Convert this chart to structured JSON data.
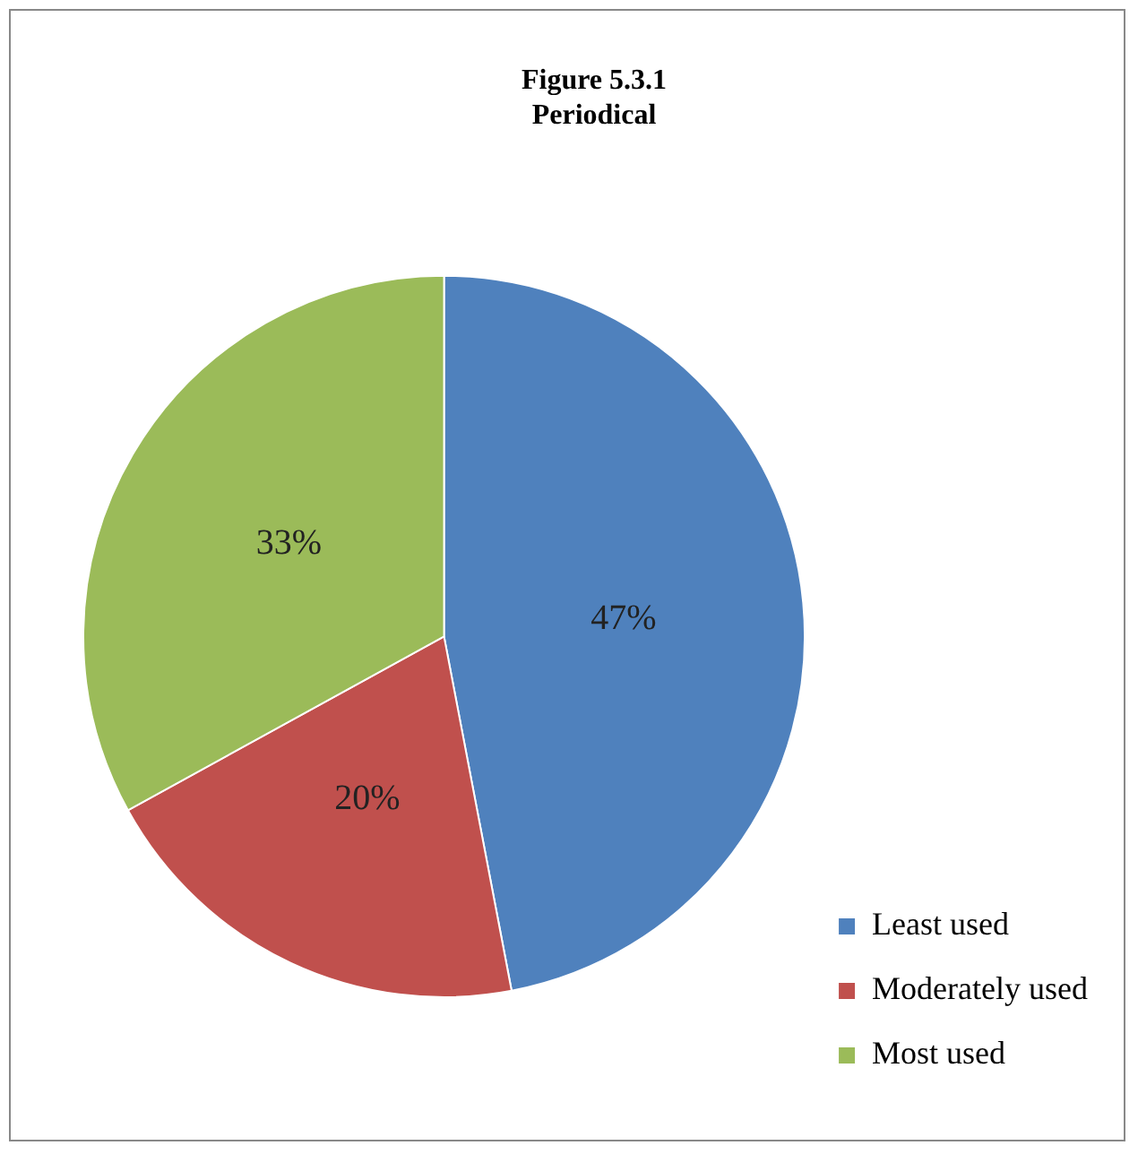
{
  "chart_data": {
    "type": "pie",
    "title": "Figure 5.3.1",
    "subtitle": "Periodical",
    "categories": [
      "Least used",
      "Moderately used",
      "Most used"
    ],
    "values": [
      47,
      20,
      33
    ],
    "colors": [
      "#4f81bd",
      "#c0504d",
      "#9bbb59"
    ],
    "value_labels": [
      "47%",
      "20%",
      "33%"
    ],
    "legend": "bottom right"
  }
}
